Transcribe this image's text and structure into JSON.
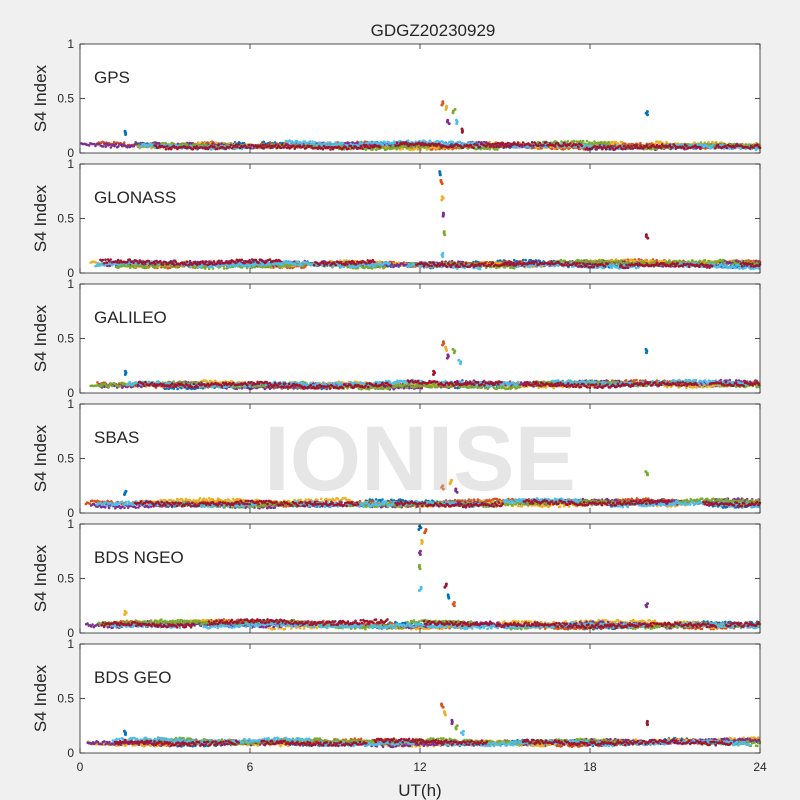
{
  "figure": {
    "title": "GDGZ20230929",
    "xlabel": "UT(h)",
    "watermark": "IONISE"
  },
  "colors": {
    "blue": "#0072BD",
    "orange": "#D95319",
    "yellow": "#EDB120",
    "purple": "#7E2F8E",
    "green": "#77AC30",
    "cyan": "#4DBEEE",
    "red": "#A2142F"
  },
  "chart_data": [
    {
      "type": "scatter",
      "label": "GPS",
      "ylabel": "S4 Index",
      "xlim": [
        0,
        24
      ],
      "ylim": [
        0,
        1
      ],
      "xticks": [
        0,
        6,
        12,
        18,
        24
      ],
      "yticks": [
        0,
        0.5,
        1
      ],
      "baseline": 0.07,
      "spikes": [
        {
          "x": 1.6,
          "y": 0.2
        },
        {
          "x": 12.8,
          "y": 0.47
        },
        {
          "x": 12.9,
          "y": 0.43
        },
        {
          "x": 13.0,
          "y": 0.3
        },
        {
          "x": 13.2,
          "y": 0.4
        },
        {
          "x": 13.3,
          "y": 0.3
        },
        {
          "x": 13.5,
          "y": 0.22
        },
        {
          "x": 20.0,
          "y": 0.38
        }
      ]
    },
    {
      "type": "scatter",
      "label": "GLONASS",
      "ylabel": "S4 Index",
      "xlim": [
        0,
        24
      ],
      "ylim": [
        0,
        1
      ],
      "xticks": [
        0,
        6,
        12,
        18,
        24
      ],
      "yticks": [
        0,
        0.5,
        1
      ],
      "baseline": 0.08,
      "spikes": [
        {
          "x": 12.7,
          "y": 0.93
        },
        {
          "x": 12.75,
          "y": 0.85
        },
        {
          "x": 12.8,
          "y": 0.7
        },
        {
          "x": 12.8,
          "y": 0.55
        },
        {
          "x": 12.85,
          "y": 0.38
        },
        {
          "x": 12.8,
          "y": 0.18
        },
        {
          "x": 20.0,
          "y": 0.35
        }
      ]
    },
    {
      "type": "scatter",
      "label": "GALILEO",
      "ylabel": "S4 Index",
      "xlim": [
        0,
        24
      ],
      "ylim": [
        0,
        1
      ],
      "xticks": [
        0,
        6,
        12,
        18,
        24
      ],
      "yticks": [
        0,
        0.5,
        1
      ],
      "baseline": 0.08,
      "spikes": [
        {
          "x": 1.6,
          "y": 0.2
        },
        {
          "x": 12.8,
          "y": 0.47
        },
        {
          "x": 12.9,
          "y": 0.42
        },
        {
          "x": 13.0,
          "y": 0.35
        },
        {
          "x": 13.2,
          "y": 0.4
        },
        {
          "x": 13.4,
          "y": 0.3
        },
        {
          "x": 12.5,
          "y": 0.2
        },
        {
          "x": 20.0,
          "y": 0.4
        }
      ]
    },
    {
      "type": "scatter",
      "label": "SBAS",
      "ylabel": "S4 Index",
      "xlim": [
        0,
        24
      ],
      "ylim": [
        0,
        1
      ],
      "xticks": [
        0,
        6,
        12,
        18,
        24
      ],
      "yticks": [
        0,
        0.5,
        1
      ],
      "baseline": 0.09,
      "spikes": [
        {
          "x": 1.6,
          "y": 0.2
        },
        {
          "x": 12.8,
          "y": 0.25
        },
        {
          "x": 13.1,
          "y": 0.3
        },
        {
          "x": 13.3,
          "y": 0.22
        },
        {
          "x": 20.0,
          "y": 0.38
        }
      ]
    },
    {
      "type": "scatter",
      "label": "BDS NGEO",
      "ylabel": "S4 Index",
      "xlim": [
        0,
        24
      ],
      "ylim": [
        0,
        1
      ],
      "xticks": [
        0,
        6,
        12,
        18,
        24
      ],
      "yticks": [
        0,
        0.5,
        1
      ],
      "baseline": 0.08,
      "spikes": [
        {
          "x": 12.0,
          "y": 0.98
        },
        {
          "x": 12.2,
          "y": 0.95
        },
        {
          "x": 12.1,
          "y": 0.85
        },
        {
          "x": 12.0,
          "y": 0.75
        },
        {
          "x": 12.0,
          "y": 0.62
        },
        {
          "x": 12.0,
          "y": 0.42
        },
        {
          "x": 12.9,
          "y": 0.45
        },
        {
          "x": 13.0,
          "y": 0.35
        },
        {
          "x": 13.2,
          "y": 0.28
        },
        {
          "x": 1.6,
          "y": 0.2
        },
        {
          "x": 20.0,
          "y": 0.27
        }
      ]
    },
    {
      "type": "scatter",
      "label": "BDS GEO",
      "ylabel": "S4 Index",
      "xlim": [
        0,
        24
      ],
      "ylim": [
        0,
        1
      ],
      "xticks": [
        0,
        6,
        12,
        18,
        24
      ],
      "yticks": [
        0,
        0.5,
        1
      ],
      "baseline": 0.1,
      "spikes": [
        {
          "x": 1.6,
          "y": 0.2
        },
        {
          "x": 12.8,
          "y": 0.45
        },
        {
          "x": 12.9,
          "y": 0.38
        },
        {
          "x": 13.1,
          "y": 0.3
        },
        {
          "x": 13.3,
          "y": 0.25
        },
        {
          "x": 13.5,
          "y": 0.2
        },
        {
          "x": 20.0,
          "y": 0.29
        }
      ]
    }
  ]
}
